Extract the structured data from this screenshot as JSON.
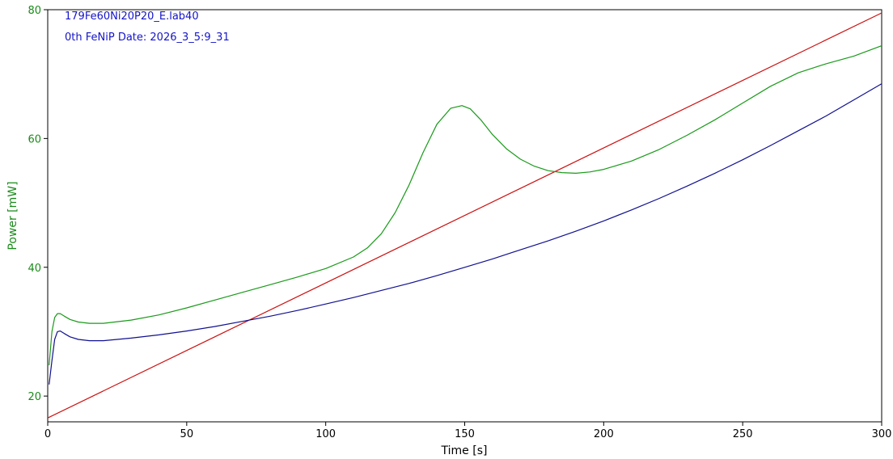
{
  "chart_data": {
    "type": "line",
    "xlabel": "Time [s]",
    "ylabel": "Power [mW]",
    "xlim": [
      0,
      300
    ],
    "ylim": [
      16,
      80
    ],
    "xticks": [
      0,
      50,
      100,
      150,
      200,
      250,
      300
    ],
    "yticks": [
      20,
      40,
      60,
      80
    ],
    "grid": false,
    "annotations": [
      "179Fe60Ni20P20_E.lab40",
      "0th FeNiP Date: 2026_3_5:9_31"
    ],
    "colors": {
      "annotation": "#1515c8",
      "yaxis": "#1a8a1a",
      "axis": "#000000"
    },
    "series": [
      {
        "color": "#cc1111",
        "x": [
          0,
          300
        ],
        "y": [
          16.6,
          79.5
        ]
      },
      {
        "color": "#1a9a1a",
        "x": [
          0.5,
          1.5,
          2.5,
          3.5,
          4.5,
          6,
          8,
          11,
          15,
          20,
          30,
          40,
          50,
          60,
          70,
          80,
          90,
          100,
          110,
          115,
          120,
          125,
          130,
          135,
          140,
          145,
          149,
          152,
          156,
          160,
          165,
          170,
          175,
          180,
          185,
          190,
          195,
          200,
          210,
          220,
          230,
          240,
          250,
          260,
          270,
          280,
          290,
          300
        ],
        "y": [
          24.8,
          30.0,
          32.2,
          32.8,
          32.8,
          32.4,
          31.9,
          31.5,
          31.3,
          31.3,
          31.8,
          32.6,
          33.7,
          34.9,
          36.1,
          37.3,
          38.5,
          39.8,
          41.6,
          43.0,
          45.2,
          48.5,
          52.8,
          57.8,
          62.2,
          64.7,
          65.1,
          64.6,
          62.8,
          60.6,
          58.4,
          56.8,
          55.7,
          55.0,
          54.7,
          54.6,
          54.8,
          55.2,
          56.5,
          58.3,
          60.5,
          62.9,
          65.5,
          68.1,
          70.2,
          71.6,
          72.8,
          74.4
        ]
      },
      {
        "color": "#101090",
        "x": [
          0.5,
          1.5,
          2.5,
          3.5,
          4.5,
          6,
          8,
          11,
          15,
          20,
          30,
          40,
          50,
          60,
          70,
          80,
          90,
          100,
          110,
          120,
          130,
          140,
          150,
          160,
          170,
          180,
          190,
          200,
          210,
          220,
          230,
          240,
          250,
          260,
          270,
          280,
          290,
          300
        ],
        "y": [
          21.8,
          25.5,
          28.8,
          30.0,
          30.1,
          29.7,
          29.2,
          28.8,
          28.6,
          28.6,
          29.0,
          29.5,
          30.1,
          30.8,
          31.6,
          32.4,
          33.3,
          34.3,
          35.3,
          36.4,
          37.5,
          38.7,
          40.0,
          41.3,
          42.7,
          44.1,
          45.6,
          47.2,
          48.9,
          50.7,
          52.6,
          54.6,
          56.7,
          58.9,
          61.2,
          63.5,
          66.0,
          68.5
        ]
      }
    ]
  }
}
